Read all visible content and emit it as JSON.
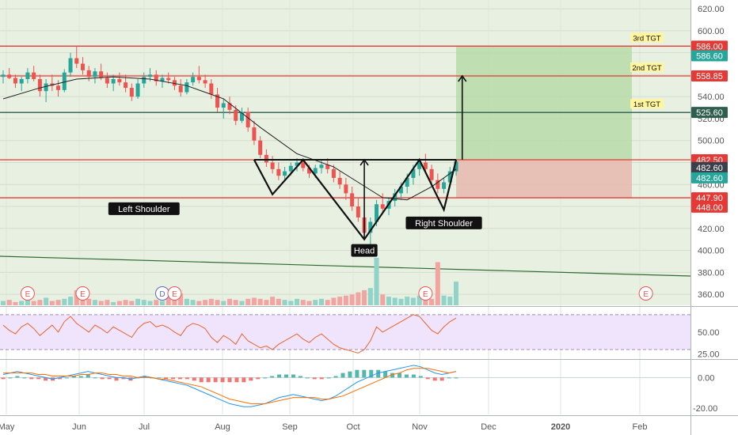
{
  "chart_data": {
    "type": "candlestick",
    "instrument_note": "",
    "x_ticks": [
      "May",
      "Jun",
      "Jul",
      "Aug",
      "Sep",
      "Oct",
      "Nov",
      "Dec",
      "2020",
      "Feb"
    ],
    "y_ticks": [
      360,
      380,
      400,
      420,
      440,
      460,
      480,
      500,
      520,
      540,
      560,
      580,
      600,
      620
    ],
    "ylim": [
      350,
      628
    ],
    "price_series": [
      {
        "t": 0,
        "o": 558,
        "h": 564,
        "l": 552,
        "c": 560
      },
      {
        "t": 1,
        "o": 560,
        "h": 566,
        "l": 556,
        "c": 557
      },
      {
        "t": 2,
        "o": 557,
        "h": 560,
        "l": 548,
        "c": 552
      },
      {
        "t": 3,
        "o": 552,
        "h": 558,
        "l": 545,
        "c": 556
      },
      {
        "t": 4,
        "o": 556,
        "h": 566,
        "l": 552,
        "c": 562
      },
      {
        "t": 5,
        "o": 562,
        "h": 568,
        "l": 554,
        "c": 556
      },
      {
        "t": 6,
        "o": 556,
        "h": 560,
        "l": 540,
        "c": 545
      },
      {
        "t": 7,
        "o": 545,
        "h": 556,
        "l": 535,
        "c": 552
      },
      {
        "t": 8,
        "o": 552,
        "h": 560,
        "l": 545,
        "c": 550
      },
      {
        "t": 9,
        "o": 550,
        "h": 555,
        "l": 540,
        "c": 546
      },
      {
        "t": 10,
        "o": 546,
        "h": 565,
        "l": 544,
        "c": 562
      },
      {
        "t": 11,
        "o": 562,
        "h": 580,
        "l": 558,
        "c": 575
      },
      {
        "t": 12,
        "o": 575,
        "h": 586,
        "l": 566,
        "c": 570
      },
      {
        "t": 13,
        "o": 570,
        "h": 576,
        "l": 560,
        "c": 564
      },
      {
        "t": 14,
        "o": 564,
        "h": 568,
        "l": 554,
        "c": 558
      },
      {
        "t": 15,
        "o": 558,
        "h": 566,
        "l": 552,
        "c": 563
      },
      {
        "t": 16,
        "o": 563,
        "h": 570,
        "l": 555,
        "c": 557
      },
      {
        "t": 17,
        "o": 557,
        "h": 562,
        "l": 548,
        "c": 552
      },
      {
        "t": 18,
        "o": 552,
        "h": 560,
        "l": 545,
        "c": 556
      },
      {
        "t": 19,
        "o": 556,
        "h": 562,
        "l": 550,
        "c": 553
      },
      {
        "t": 20,
        "o": 553,
        "h": 560,
        "l": 544,
        "c": 548
      },
      {
        "t": 21,
        "o": 548,
        "h": 552,
        "l": 536,
        "c": 540
      },
      {
        "t": 22,
        "o": 540,
        "h": 556,
        "l": 538,
        "c": 552
      },
      {
        "t": 23,
        "o": 552,
        "h": 562,
        "l": 548,
        "c": 558
      },
      {
        "t": 24,
        "o": 558,
        "h": 566,
        "l": 554,
        "c": 560
      },
      {
        "t": 25,
        "o": 560,
        "h": 564,
        "l": 550,
        "c": 554
      },
      {
        "t": 26,
        "o": 554,
        "h": 560,
        "l": 548,
        "c": 557
      },
      {
        "t": 27,
        "o": 557,
        "h": 562,
        "l": 552,
        "c": 555
      },
      {
        "t": 28,
        "o": 555,
        "h": 558,
        "l": 546,
        "c": 550
      },
      {
        "t": 29,
        "o": 550,
        "h": 556,
        "l": 540,
        "c": 544
      },
      {
        "t": 30,
        "o": 544,
        "h": 556,
        "l": 542,
        "c": 553
      },
      {
        "t": 31,
        "o": 553,
        "h": 562,
        "l": 550,
        "c": 558
      },
      {
        "t": 32,
        "o": 558,
        "h": 568,
        "l": 552,
        "c": 555
      },
      {
        "t": 33,
        "o": 555,
        "h": 560,
        "l": 548,
        "c": 552
      },
      {
        "t": 34,
        "o": 552,
        "h": 556,
        "l": 538,
        "c": 542
      },
      {
        "t": 35,
        "o": 542,
        "h": 548,
        "l": 526,
        "c": 530
      },
      {
        "t": 36,
        "o": 530,
        "h": 538,
        "l": 520,
        "c": 534
      },
      {
        "t": 37,
        "o": 534,
        "h": 540,
        "l": 524,
        "c": 528
      },
      {
        "t": 38,
        "o": 528,
        "h": 532,
        "l": 514,
        "c": 518
      },
      {
        "t": 39,
        "o": 518,
        "h": 530,
        "l": 516,
        "c": 526
      },
      {
        "t": 40,
        "o": 526,
        "h": 530,
        "l": 508,
        "c": 512
      },
      {
        "t": 41,
        "o": 512,
        "h": 518,
        "l": 496,
        "c": 500
      },
      {
        "t": 42,
        "o": 500,
        "h": 504,
        "l": 484,
        "c": 487
      },
      {
        "t": 43,
        "o": 487,
        "h": 492,
        "l": 476,
        "c": 480
      },
      {
        "t": 44,
        "o": 480,
        "h": 486,
        "l": 470,
        "c": 474
      },
      {
        "t": 45,
        "o": 474,
        "h": 480,
        "l": 464,
        "c": 468
      },
      {
        "t": 46,
        "o": 468,
        "h": 476,
        "l": 464,
        "c": 472
      },
      {
        "t": 47,
        "o": 472,
        "h": 480,
        "l": 468,
        "c": 477
      },
      {
        "t": 48,
        "o": 477,
        "h": 484,
        "l": 472,
        "c": 480
      },
      {
        "t": 49,
        "o": 480,
        "h": 484,
        "l": 472,
        "c": 475
      },
      {
        "t": 50,
        "o": 475,
        "h": 478,
        "l": 466,
        "c": 470
      },
      {
        "t": 51,
        "o": 470,
        "h": 478,
        "l": 466,
        "c": 475
      },
      {
        "t": 52,
        "o": 475,
        "h": 482,
        "l": 470,
        "c": 478
      },
      {
        "t": 53,
        "o": 478,
        "h": 484,
        "l": 470,
        "c": 474
      },
      {
        "t": 54,
        "o": 474,
        "h": 478,
        "l": 462,
        "c": 466
      },
      {
        "t": 55,
        "o": 466,
        "h": 472,
        "l": 456,
        "c": 460
      },
      {
        "t": 56,
        "o": 460,
        "h": 466,
        "l": 446,
        "c": 452
      },
      {
        "t": 57,
        "o": 452,
        "h": 458,
        "l": 436,
        "c": 440
      },
      {
        "t": 58,
        "o": 440,
        "h": 448,
        "l": 426,
        "c": 430
      },
      {
        "t": 59,
        "o": 430,
        "h": 436,
        "l": 412,
        "c": 416
      },
      {
        "t": 60,
        "o": 416,
        "h": 430,
        "l": 404,
        "c": 426
      },
      {
        "t": 61,
        "o": 426,
        "h": 446,
        "l": 422,
        "c": 442
      },
      {
        "t": 62,
        "o": 442,
        "h": 452,
        "l": 434,
        "c": 438
      },
      {
        "t": 63,
        "o": 438,
        "h": 448,
        "l": 432,
        "c": 445
      },
      {
        "t": 64,
        "o": 445,
        "h": 456,
        "l": 440,
        "c": 452
      },
      {
        "t": 65,
        "o": 452,
        "h": 462,
        "l": 446,
        "c": 458
      },
      {
        "t": 66,
        "o": 458,
        "h": 470,
        "l": 452,
        "c": 466
      },
      {
        "t": 67,
        "o": 466,
        "h": 478,
        "l": 460,
        "c": 474
      },
      {
        "t": 68,
        "o": 474,
        "h": 484,
        "l": 468,
        "c": 480
      },
      {
        "t": 69,
        "o": 480,
        "h": 488,
        "l": 470,
        "c": 474
      },
      {
        "t": 70,
        "o": 474,
        "h": 478,
        "l": 460,
        "c": 464
      },
      {
        "t": 71,
        "o": 464,
        "h": 470,
        "l": 452,
        "c": 456
      },
      {
        "t": 72,
        "o": 456,
        "h": 466,
        "l": 452,
        "c": 462
      },
      {
        "t": 73,
        "o": 462,
        "h": 476,
        "l": 458,
        "c": 472
      },
      {
        "t": 74,
        "o": 472,
        "h": 483,
        "l": 468,
        "c": 481
      }
    ],
    "sma": [
      {
        "t": 0,
        "v": 538
      },
      {
        "t": 6,
        "v": 548
      },
      {
        "t": 12,
        "v": 556
      },
      {
        "t": 18,
        "v": 558
      },
      {
        "t": 24,
        "v": 556
      },
      {
        "t": 30,
        "v": 550
      },
      {
        "t": 36,
        "v": 538
      },
      {
        "t": 42,
        "v": 512
      },
      {
        "t": 48,
        "v": 488
      },
      {
        "t": 54,
        "v": 476
      },
      {
        "t": 58,
        "v": 462
      },
      {
        "t": 62,
        "v": 448
      },
      {
        "t": 66,
        "v": 446
      },
      {
        "t": 70,
        "v": 458
      },
      {
        "t": 74,
        "v": 474
      }
    ],
    "horizontal_levels": [
      {
        "value": 586.0,
        "color": "#e53935"
      },
      {
        "value": 558.85,
        "color": "#e53935"
      },
      {
        "value": 525.6,
        "color": "#2e5e4e"
      },
      {
        "value": 482.5,
        "color": "#e53935"
      },
      {
        "value": 447.9,
        "color": "#e53935"
      }
    ],
    "target_labels": [
      {
        "text": "3rd TGT",
        "value": 586.0
      },
      {
        "text": "2nd TGT",
        "value": 558.85
      },
      {
        "text": "1st TGT",
        "value": 525.6
      }
    ],
    "price_badges": [
      {
        "text": "586.00",
        "value": 586.0,
        "color": "#e53935"
      },
      {
        "text": "586.60",
        "value": 586.6,
        "color": "#26a69a",
        "offset": 13
      },
      {
        "text": "558.85",
        "value": 558.85,
        "color": "#e53935"
      },
      {
        "text": "525.60",
        "value": 525.6,
        "color": "#2e5e4e"
      },
      {
        "text": "482.50",
        "value": 482.5,
        "color": "#e53935"
      },
      {
        "text": "482.60",
        "value": 482.6,
        "color": "#3a3f4a",
        "offset": 10
      },
      {
        "text": "482.60",
        "value": 482.6,
        "color": "#26a69a",
        "offset": 23
      },
      {
        "text": "447.90",
        "value": 447.9,
        "color": "#e53935"
      },
      {
        "text": "448.00",
        "value": 448.0,
        "color": "#e53935",
        "offset": 12
      }
    ],
    "pattern_annotations": [
      {
        "text": "Left Shoulder",
        "t": 23,
        "value": 438
      },
      {
        "text": "Head",
        "t": 59,
        "value": 400
      },
      {
        "text": "Right Shoulder",
        "t": 72,
        "value": 425
      }
    ],
    "neckline_value": 482.5,
    "event_markers": [
      {
        "text": "E",
        "t": 4
      },
      {
        "text": "E",
        "t": 13
      },
      {
        "text": "D",
        "t": 26
      },
      {
        "text": "E",
        "t": 28
      },
      {
        "text": "E",
        "t": 69
      },
      {
        "text": "E",
        "t": 105
      }
    ],
    "volume": [
      4,
      5,
      3,
      4,
      6,
      4,
      5,
      7,
      4,
      5,
      6,
      8,
      14,
      9,
      6,
      5,
      4,
      5,
      3,
      4,
      5,
      4,
      6,
      5,
      4,
      5,
      4,
      9,
      12,
      11,
      6,
      5,
      4,
      5,
      6,
      5,
      4,
      6,
      5,
      4,
      6,
      7,
      6,
      5,
      8,
      6,
      5,
      4,
      6,
      5,
      4,
      5,
      6,
      5,
      7,
      8,
      9,
      10,
      12,
      14,
      16,
      44,
      10,
      8,
      7,
      6,
      8,
      7,
      9,
      7,
      6,
      40,
      9,
      8,
      22
    ],
    "rsi": {
      "y_ticks": [
        25.0,
        50.0
      ],
      "ylim": [
        20,
        78
      ],
      "upper_band": 70,
      "lower_band": 30,
      "values": [
        58,
        52,
        48,
        56,
        60,
        54,
        46,
        52,
        58,
        50,
        62,
        68,
        60,
        55,
        50,
        58,
        54,
        49,
        56,
        52,
        48,
        44,
        54,
        60,
        62,
        56,
        58,
        55,
        50,
        46,
        56,
        60,
        58,
        54,
        44,
        38,
        46,
        42,
        36,
        48,
        40,
        36,
        32,
        34,
        30,
        36,
        40,
        44,
        48,
        42,
        38,
        44,
        48,
        42,
        36,
        32,
        30,
        28,
        26,
        30,
        40,
        56,
        50,
        54,
        58,
        62,
        66,
        70,
        68,
        60,
        52,
        48,
        56,
        62,
        66
      ]
    },
    "macd": {
      "y_ticks": [
        0.0,
        -20.0
      ],
      "ylim": [
        -24,
        10
      ],
      "macd_line": [
        2,
        3,
        4,
        3,
        2,
        1,
        0,
        -1,
        0,
        1,
        2,
        3,
        4,
        3,
        2,
        1,
        0,
        0,
        -1,
        0,
        1,
        0,
        -1,
        -2,
        -3,
        -4,
        -5,
        -7,
        -9,
        -11,
        -13,
        -15,
        -17,
        -18,
        -19,
        -19,
        -18,
        -17,
        -15,
        -13,
        -12,
        -11,
        -12,
        -13,
        -14,
        -15,
        -14,
        -12,
        -9,
        -6,
        -3,
        -1,
        1,
        3,
        4,
        5,
        6,
        7,
        8,
        7,
        5,
        3,
        2,
        3,
        4
      ],
      "signal_line": [
        3,
        3,
        3,
        3,
        3,
        2,
        2,
        1,
        1,
        1,
        1,
        2,
        2,
        3,
        3,
        2,
        2,
        1,
        1,
        0,
        0,
        0,
        -1,
        -1,
        -2,
        -3,
        -4,
        -5,
        -6,
        -8,
        -10,
        -12,
        -14,
        -15,
        -16,
        -17,
        -17,
        -17,
        -16,
        -15,
        -14,
        -13,
        -13,
        -13,
        -13,
        -14,
        -14,
        -13,
        -12,
        -10,
        -8,
        -6,
        -4,
        -2,
        0,
        2,
        3,
        5,
        6,
        6,
        6,
        5,
        4,
        3,
        4
      ],
      "histogram": [
        -1,
        0,
        1,
        0,
        -1,
        -1,
        -2,
        -2,
        -1,
        0,
        1,
        1,
        2,
        0,
        -1,
        -1,
        -2,
        -1,
        -2,
        0,
        1,
        0,
        0,
        -1,
        -1,
        -1,
        -1,
        -2,
        -3,
        -3,
        -3,
        -3,
        -3,
        -3,
        -3,
        -2,
        -1,
        0,
        1,
        2,
        2,
        2,
        1,
        0,
        -1,
        -1,
        0,
        1,
        3,
        4,
        5,
        5,
        5,
        5,
        4,
        3,
        3,
        2,
        2,
        1,
        -1,
        -2,
        -2,
        0,
        0
      ]
    }
  }
}
